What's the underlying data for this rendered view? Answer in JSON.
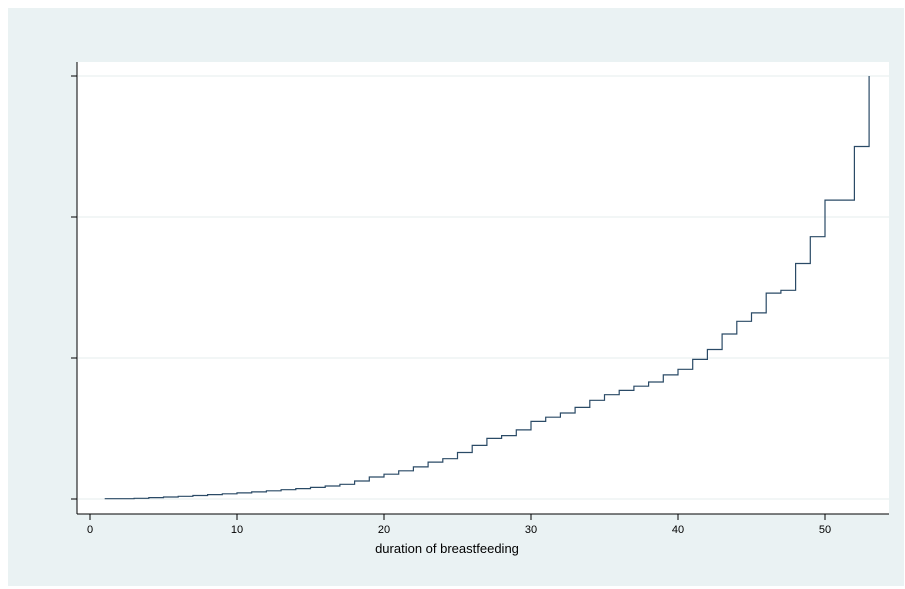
{
  "chart_data": {
    "type": "line",
    "step": true,
    "title": "",
    "xlabel": "duration of breastfeeding",
    "ylabel": "",
    "xlim": [
      0,
      54
    ],
    "ylim": [
      0,
      3
    ],
    "xticks": [
      0,
      10,
      20,
      30,
      40,
      50
    ],
    "yticks": [
      0,
      1,
      2,
      3
    ],
    "ytick_labels_shown": false,
    "grid": "horizontal",
    "legend": "none",
    "colors": {
      "line": "#2a4a66",
      "grid": "#e6ecee",
      "background": "#eaf2f3",
      "plot_area": "#ffffff"
    },
    "series": [
      {
        "x": [
          1,
          3,
          4,
          5,
          6,
          7,
          8,
          9,
          10,
          11,
          12,
          13,
          14,
          15,
          16,
          17,
          18,
          19,
          20,
          21,
          22,
          23,
          24,
          25,
          26,
          27,
          28,
          29,
          30,
          31,
          32,
          33,
          34,
          35,
          36,
          37,
          38,
          39,
          40,
          41,
          42,
          43,
          44,
          45,
          46,
          47,
          48,
          49,
          50,
          52,
          53
        ],
        "y": [
          0.002,
          0.005,
          0.01,
          0.014,
          0.019,
          0.025,
          0.031,
          0.037,
          0.043,
          0.05,
          0.058,
          0.066,
          0.074,
          0.082,
          0.092,
          0.104,
          0.128,
          0.156,
          0.176,
          0.2,
          0.228,
          0.262,
          0.286,
          0.33,
          0.38,
          0.43,
          0.45,
          0.49,
          0.55,
          0.58,
          0.61,
          0.65,
          0.7,
          0.74,
          0.77,
          0.8,
          0.83,
          0.88,
          0.92,
          0.99,
          1.06,
          1.17,
          1.26,
          1.32,
          1.46,
          1.48,
          1.67,
          1.86,
          2.12,
          2.5,
          3.0
        ]
      }
    ]
  }
}
